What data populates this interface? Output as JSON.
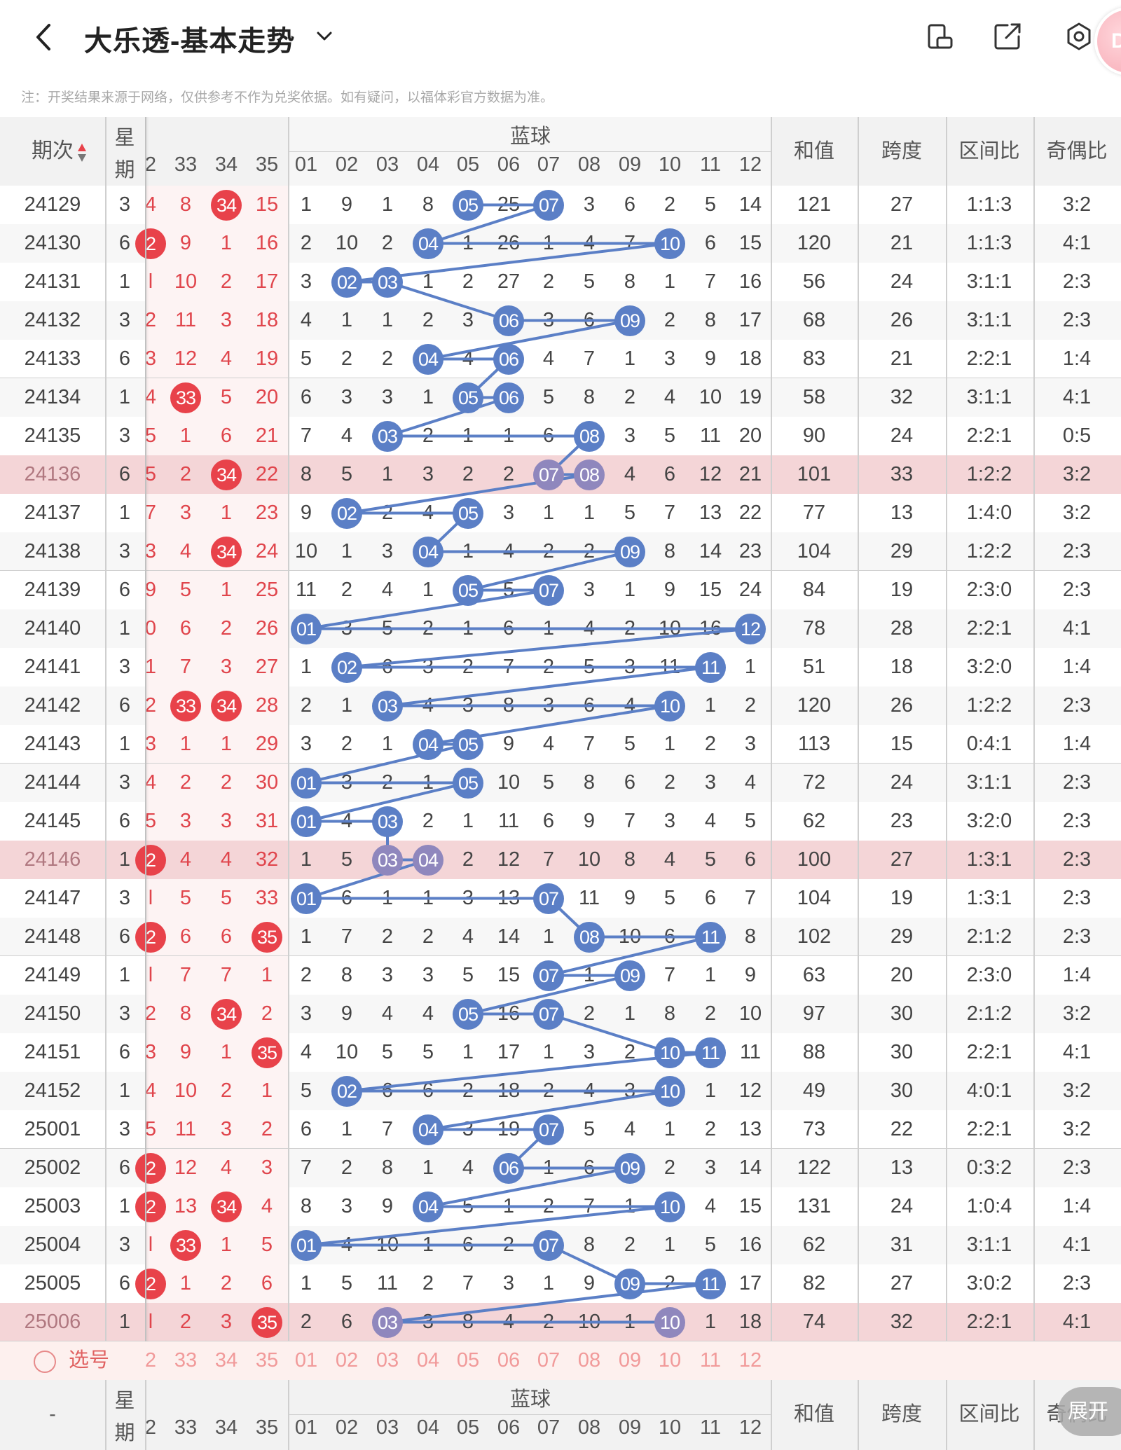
{
  "header": {
    "title": "大乐透-基本走势",
    "avatar_text": "D",
    "icons": [
      "back-icon",
      "chevron-down-icon",
      "phone-rotate-icon",
      "share-icon",
      "settings-icon"
    ]
  },
  "notice": "注：开奖结果来源于网络，仅供参考不作为兑奖依据。如有疑问，以福体彩官方数据为准。",
  "columns": {
    "period": "期次",
    "weekday_top": "星",
    "weekday_bottom": "期",
    "red_visible": [
      "2",
      "33",
      "34",
      "35"
    ],
    "blue_group": "蓝球",
    "blue_numbers": [
      "01",
      "02",
      "03",
      "04",
      "05",
      "06",
      "07",
      "08",
      "09",
      "10",
      "11",
      "12"
    ],
    "sum": "和值",
    "span": "跨度",
    "zone_ratio": "区间比",
    "odd_even_ratio": "奇偶比"
  },
  "rows": [
    {
      "period": "24129",
      "week": "3",
      "red": [
        "4",
        "8",
        "34",
        "15"
      ],
      "redHit": [
        0,
        0,
        1,
        0
      ],
      "blue": [
        "1",
        "9",
        "1",
        "8",
        "05",
        "25",
        "07",
        "3",
        "6",
        "2",
        "5",
        "14"
      ],
      "hits": [
        5,
        7
      ],
      "sum": "121",
      "span": "27",
      "zone": "1:1:3",
      "oe": "3:2",
      "hl": false
    },
    {
      "period": "24130",
      "week": "6",
      "red": [
        "2",
        "9",
        "1",
        "16"
      ],
      "redHit": [
        1,
        0,
        0,
        0
      ],
      "blue": [
        "2",
        "10",
        "2",
        "04",
        "1",
        "26",
        "1",
        "4",
        "7",
        "10",
        "6",
        "15"
      ],
      "hits": [
        4,
        10
      ],
      "sum": "120",
      "span": "21",
      "zone": "1:1:3",
      "oe": "4:1",
      "hl": false
    },
    {
      "period": "24131",
      "week": "1",
      "red": [
        "l",
        "10",
        "2",
        "17"
      ],
      "redHit": [
        0,
        0,
        0,
        0
      ],
      "blue": [
        "3",
        "02",
        "03",
        "1",
        "2",
        "27",
        "2",
        "5",
        "8",
        "1",
        "7",
        "16"
      ],
      "hits": [
        2,
        3
      ],
      "sum": "56",
      "span": "24",
      "zone": "3:1:1",
      "oe": "2:3",
      "hl": false
    },
    {
      "period": "24132",
      "week": "3",
      "red": [
        "2",
        "11",
        "3",
        "18"
      ],
      "redHit": [
        0,
        0,
        0,
        0
      ],
      "blue": [
        "4",
        "1",
        "1",
        "2",
        "3",
        "06",
        "3",
        "6",
        "09",
        "2",
        "8",
        "17"
      ],
      "hits": [
        6,
        9
      ],
      "sum": "68",
      "span": "26",
      "zone": "3:1:1",
      "oe": "2:3",
      "hl": false
    },
    {
      "period": "24133",
      "week": "6",
      "red": [
        "3",
        "12",
        "4",
        "19"
      ],
      "redHit": [
        0,
        0,
        0,
        0
      ],
      "blue": [
        "5",
        "2",
        "2",
        "04",
        "4",
        "06",
        "4",
        "7",
        "1",
        "3",
        "9",
        "18"
      ],
      "hits": [
        4,
        6
      ],
      "sum": "83",
      "span": "21",
      "zone": "2:2:1",
      "oe": "1:4",
      "hl": false
    },
    {
      "period": "24134",
      "week": "1",
      "red": [
        "4",
        "33",
        "5",
        "20"
      ],
      "redHit": [
        0,
        1,
        0,
        0
      ],
      "blue": [
        "6",
        "3",
        "3",
        "1",
        "05",
        "06",
        "5",
        "8",
        "2",
        "4",
        "10",
        "19"
      ],
      "hits": [
        5,
        6
      ],
      "sum": "58",
      "span": "32",
      "zone": "3:1:1",
      "oe": "4:1",
      "hl": false
    },
    {
      "period": "24135",
      "week": "3",
      "red": [
        "5",
        "1",
        "6",
        "21"
      ],
      "redHit": [
        0,
        0,
        0,
        0
      ],
      "blue": [
        "7",
        "4",
        "03",
        "2",
        "1",
        "1",
        "6",
        "08",
        "3",
        "5",
        "11",
        "20"
      ],
      "hits": [
        3,
        8
      ],
      "sum": "90",
      "span": "24",
      "zone": "2:2:1",
      "oe": "0:5",
      "hl": false
    },
    {
      "period": "24136",
      "week": "6",
      "red": [
        "5",
        "2",
        "34",
        "22"
      ],
      "redHit": [
        0,
        0,
        1,
        0
      ],
      "blue": [
        "8",
        "5",
        "1",
        "3",
        "2",
        "2",
        "07",
        "08",
        "4",
        "6",
        "12",
        "21"
      ],
      "hits": [
        7,
        8
      ],
      "sum": "101",
      "span": "33",
      "zone": "1:2:2",
      "oe": "3:2",
      "hl": true
    },
    {
      "period": "24137",
      "week": "1",
      "red": [
        "7",
        "3",
        "1",
        "23"
      ],
      "redHit": [
        0,
        0,
        0,
        0
      ],
      "blue": [
        "9",
        "02",
        "2",
        "4",
        "05",
        "3",
        "1",
        "1",
        "5",
        "7",
        "13",
        "22"
      ],
      "hits": [
        2,
        5
      ],
      "sum": "77",
      "span": "13",
      "zone": "1:4:0",
      "oe": "3:2",
      "hl": false
    },
    {
      "period": "24138",
      "week": "3",
      "red": [
        "3",
        "4",
        "34",
        "24"
      ],
      "redHit": [
        0,
        0,
        1,
        0
      ],
      "blue": [
        "10",
        "1",
        "3",
        "04",
        "1",
        "4",
        "2",
        "2",
        "09",
        "8",
        "14",
        "23"
      ],
      "hits": [
        4,
        9
      ],
      "sum": "104",
      "span": "29",
      "zone": "1:2:2",
      "oe": "2:3",
      "hl": false
    },
    {
      "period": "24139",
      "week": "6",
      "red": [
        "9",
        "5",
        "1",
        "25"
      ],
      "redHit": [
        0,
        0,
        0,
        0
      ],
      "blue": [
        "11",
        "2",
        "4",
        "1",
        "05",
        "5",
        "07",
        "3",
        "1",
        "9",
        "15",
        "24"
      ],
      "hits": [
        5,
        7
      ],
      "sum": "84",
      "span": "19",
      "zone": "2:3:0",
      "oe": "2:3",
      "hl": false
    },
    {
      "period": "24140",
      "week": "1",
      "red": [
        "0",
        "6",
        "2",
        "26"
      ],
      "redHit": [
        0,
        0,
        0,
        0
      ],
      "blue": [
        "01",
        "3",
        "5",
        "2",
        "1",
        "6",
        "1",
        "4",
        "2",
        "10",
        "16",
        "12"
      ],
      "hits": [
        1,
        12
      ],
      "sum": "78",
      "span": "28",
      "zone": "2:2:1",
      "oe": "4:1",
      "hl": false
    },
    {
      "period": "24141",
      "week": "3",
      "red": [
        "1",
        "7",
        "3",
        "27"
      ],
      "redHit": [
        0,
        0,
        0,
        0
      ],
      "blue": [
        "1",
        "02",
        "6",
        "3",
        "2",
        "7",
        "2",
        "5",
        "3",
        "11",
        "11",
        "1"
      ],
      "hits": [
        2,
        11
      ],
      "sum": "51",
      "span": "18",
      "zone": "3:2:0",
      "oe": "1:4",
      "hl": false
    },
    {
      "period": "24142",
      "week": "6",
      "red": [
        "2",
        "33",
        "34",
        "28"
      ],
      "redHit": [
        0,
        1,
        1,
        0
      ],
      "blue": [
        "2",
        "1",
        "03",
        "4",
        "3",
        "8",
        "3",
        "6",
        "4",
        "10",
        "1",
        "2"
      ],
      "hits": [
        3,
        10
      ],
      "sum": "120",
      "span": "26",
      "zone": "1:2:2",
      "oe": "2:3",
      "hl": false
    },
    {
      "period": "24143",
      "week": "1",
      "red": [
        "3",
        "1",
        "1",
        "29"
      ],
      "redHit": [
        0,
        0,
        0,
        0
      ],
      "blue": [
        "3",
        "2",
        "1",
        "04",
        "05",
        "9",
        "4",
        "7",
        "5",
        "1",
        "2",
        "3"
      ],
      "hits": [
        4,
        5
      ],
      "sum": "113",
      "span": "15",
      "zone": "0:4:1",
      "oe": "1:4",
      "hl": false
    },
    {
      "period": "24144",
      "week": "3",
      "red": [
        "4",
        "2",
        "2",
        "30"
      ],
      "redHit": [
        0,
        0,
        0,
        0
      ],
      "blue": [
        "01",
        "3",
        "2",
        "1",
        "05",
        "10",
        "5",
        "8",
        "6",
        "2",
        "3",
        "4"
      ],
      "hits": [
        1,
        5
      ],
      "sum": "72",
      "span": "24",
      "zone": "3:1:1",
      "oe": "2:3",
      "hl": false
    },
    {
      "period": "24145",
      "week": "6",
      "red": [
        "5",
        "3",
        "3",
        "31"
      ],
      "redHit": [
        0,
        0,
        0,
        0
      ],
      "blue": [
        "01",
        "4",
        "03",
        "2",
        "1",
        "11",
        "6",
        "9",
        "7",
        "3",
        "4",
        "5"
      ],
      "hits": [
        1,
        3
      ],
      "sum": "62",
      "span": "23",
      "zone": "3:2:0",
      "oe": "2:3",
      "hl": false
    },
    {
      "period": "24146",
      "week": "1",
      "red": [
        "2",
        "4",
        "4",
        "32"
      ],
      "redHit": [
        1,
        0,
        0,
        0
      ],
      "blue": [
        "1",
        "5",
        "03",
        "04",
        "2",
        "12",
        "7",
        "10",
        "8",
        "4",
        "5",
        "6"
      ],
      "hits": [
        3,
        4
      ],
      "sum": "100",
      "span": "27",
      "zone": "1:3:1",
      "oe": "2:3",
      "hl": true
    },
    {
      "period": "24147",
      "week": "3",
      "red": [
        "l",
        "5",
        "5",
        "33"
      ],
      "redHit": [
        0,
        0,
        0,
        0
      ],
      "blue": [
        "01",
        "6",
        "1",
        "1",
        "3",
        "13",
        "07",
        "11",
        "9",
        "5",
        "6",
        "7"
      ],
      "hits": [
        1,
        7
      ],
      "sum": "104",
      "span": "19",
      "zone": "1:3:1",
      "oe": "2:3",
      "hl": false
    },
    {
      "period": "24148",
      "week": "6",
      "red": [
        "2",
        "6",
        "6",
        "35"
      ],
      "redHit": [
        1,
        0,
        0,
        1
      ],
      "blue": [
        "1",
        "7",
        "2",
        "2",
        "4",
        "14",
        "1",
        "08",
        "10",
        "6",
        "11",
        "8"
      ],
      "hits": [
        8,
        11
      ],
      "sum": "102",
      "span": "29",
      "zone": "2:1:2",
      "oe": "2:3",
      "hl": false
    },
    {
      "period": "24149",
      "week": "1",
      "red": [
        "l",
        "7",
        "7",
        "1"
      ],
      "redHit": [
        0,
        0,
        0,
        0
      ],
      "blue": [
        "2",
        "8",
        "3",
        "3",
        "5",
        "15",
        "07",
        "1",
        "09",
        "7",
        "1",
        "9"
      ],
      "hits": [
        7,
        9
      ],
      "sum": "63",
      "span": "20",
      "zone": "2:3:0",
      "oe": "1:4",
      "hl": false
    },
    {
      "period": "24150",
      "week": "3",
      "red": [
        "2",
        "8",
        "34",
        "2"
      ],
      "redHit": [
        0,
        0,
        1,
        0
      ],
      "blue": [
        "3",
        "9",
        "4",
        "4",
        "05",
        "16",
        "07",
        "2",
        "1",
        "8",
        "2",
        "10"
      ],
      "hits": [
        5,
        7
      ],
      "sum": "97",
      "span": "30",
      "zone": "2:1:2",
      "oe": "3:2",
      "hl": false
    },
    {
      "period": "24151",
      "week": "6",
      "red": [
        "3",
        "9",
        "1",
        "35"
      ],
      "redHit": [
        0,
        0,
        0,
        1
      ],
      "blue": [
        "4",
        "10",
        "5",
        "5",
        "1",
        "17",
        "1",
        "3",
        "2",
        "10",
        "11",
        "11"
      ],
      "hits": [
        10,
        11
      ],
      "sum": "88",
      "span": "30",
      "zone": "2:2:1",
      "oe": "4:1",
      "hl": false
    },
    {
      "period": "24152",
      "week": "1",
      "red": [
        "4",
        "10",
        "2",
        "1"
      ],
      "redHit": [
        0,
        0,
        0,
        0
      ],
      "blue": [
        "5",
        "02",
        "6",
        "6",
        "2",
        "18",
        "2",
        "4",
        "3",
        "10",
        "1",
        "12"
      ],
      "hits": [
        2,
        10
      ],
      "sum": "49",
      "span": "30",
      "zone": "4:0:1",
      "oe": "3:2",
      "hl": false
    },
    {
      "period": "25001",
      "week": "3",
      "red": [
        "5",
        "11",
        "3",
        "2"
      ],
      "redHit": [
        0,
        0,
        0,
        0
      ],
      "blue": [
        "6",
        "1",
        "7",
        "04",
        "3",
        "19",
        "07",
        "5",
        "4",
        "1",
        "2",
        "13"
      ],
      "hits": [
        4,
        7
      ],
      "sum": "73",
      "span": "22",
      "zone": "2:2:1",
      "oe": "3:2",
      "hl": false
    },
    {
      "period": "25002",
      "week": "6",
      "red": [
        "2",
        "12",
        "4",
        "3"
      ],
      "redHit": [
        1,
        0,
        0,
        0
      ],
      "blue": [
        "7",
        "2",
        "8",
        "1",
        "4",
        "06",
        "1",
        "6",
        "09",
        "2",
        "3",
        "14"
      ],
      "hits": [
        6,
        9
      ],
      "sum": "122",
      "span": "13",
      "zone": "0:3:2",
      "oe": "2:3",
      "hl": false
    },
    {
      "period": "25003",
      "week": "1",
      "red": [
        "2",
        "13",
        "34",
        "4"
      ],
      "redHit": [
        1,
        0,
        1,
        0
      ],
      "blue": [
        "8",
        "3",
        "9",
        "04",
        "5",
        "1",
        "2",
        "7",
        "1",
        "10",
        "4",
        "15"
      ],
      "hits": [
        4,
        10
      ],
      "sum": "131",
      "span": "24",
      "zone": "1:0:4",
      "oe": "1:4",
      "hl": false
    },
    {
      "period": "25004",
      "week": "3",
      "red": [
        "l",
        "33",
        "1",
        "5"
      ],
      "redHit": [
        0,
        1,
        0,
        0
      ],
      "blue": [
        "01",
        "4",
        "10",
        "1",
        "6",
        "2",
        "07",
        "8",
        "2",
        "1",
        "5",
        "16"
      ],
      "hits": [
        1,
        7
      ],
      "sum": "62",
      "span": "31",
      "zone": "3:1:1",
      "oe": "4:1",
      "hl": false
    },
    {
      "period": "25005",
      "week": "6",
      "red": [
        "2",
        "1",
        "2",
        "6"
      ],
      "redHit": [
        1,
        0,
        0,
        0
      ],
      "blue": [
        "1",
        "5",
        "11",
        "2",
        "7",
        "3",
        "1",
        "9",
        "09",
        "2",
        "11",
        "17"
      ],
      "hits": [
        9,
        11
      ],
      "sum": "82",
      "span": "27",
      "zone": "3:0:2",
      "oe": "2:3",
      "hl": false
    },
    {
      "period": "25006",
      "week": "1",
      "red": [
        "l",
        "2",
        "3",
        "35"
      ],
      "redHit": [
        0,
        0,
        0,
        1
      ],
      "blue": [
        "2",
        "6",
        "03",
        "3",
        "8",
        "4",
        "2",
        "10",
        "1",
        "10",
        "1",
        "18"
      ],
      "hits": [
        3,
        10
      ],
      "sum": "74",
      "span": "32",
      "zone": "2:2:1",
      "oe": "4:1",
      "hl": true
    }
  ],
  "select_row": {
    "label": "选号",
    "red": [
      "2",
      "33",
      "34",
      "35"
    ],
    "blue": [
      "01",
      "02",
      "03",
      "04",
      "05",
      "06",
      "07",
      "08",
      "09",
      "10",
      "11",
      "12"
    ]
  },
  "footer": {
    "period": "-",
    "expand_label": "展开"
  },
  "colors": {
    "red_ball": "#e8424a",
    "blue_ball": "#5b7fc6",
    "highlight_row": "#f4d5d7",
    "line": "#5b7fc6"
  }
}
